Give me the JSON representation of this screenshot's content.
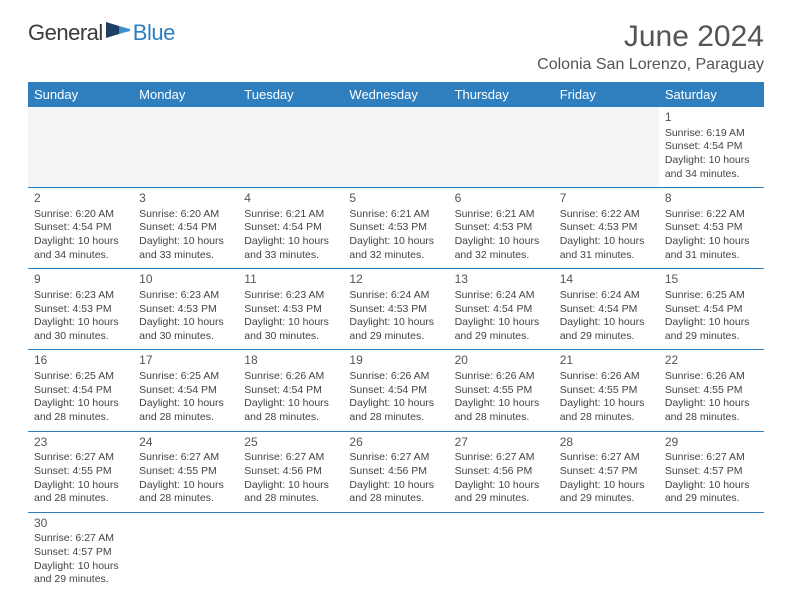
{
  "logo": {
    "general": "General",
    "blue": "Blue"
  },
  "title": {
    "month": "June 2024",
    "location": "Colonia San Lorenzo, Paraguay"
  },
  "colors": {
    "header_bg": "#2f7fbf",
    "header_text": "#ffffff",
    "rule": "#2f7fbf",
    "text": "#444444"
  },
  "weekdays": [
    "Sunday",
    "Monday",
    "Tuesday",
    "Wednesday",
    "Thursday",
    "Friday",
    "Saturday"
  ],
  "weeks": [
    [
      null,
      null,
      null,
      null,
      null,
      null,
      {
        "n": "1",
        "sr": "Sunrise: 6:19 AM",
        "ss": "Sunset: 4:54 PM",
        "d1": "Daylight: 10 hours",
        "d2": "and 34 minutes."
      }
    ],
    [
      {
        "n": "2",
        "sr": "Sunrise: 6:20 AM",
        "ss": "Sunset: 4:54 PM",
        "d1": "Daylight: 10 hours",
        "d2": "and 34 minutes."
      },
      {
        "n": "3",
        "sr": "Sunrise: 6:20 AM",
        "ss": "Sunset: 4:54 PM",
        "d1": "Daylight: 10 hours",
        "d2": "and 33 minutes."
      },
      {
        "n": "4",
        "sr": "Sunrise: 6:21 AM",
        "ss": "Sunset: 4:54 PM",
        "d1": "Daylight: 10 hours",
        "d2": "and 33 minutes."
      },
      {
        "n": "5",
        "sr": "Sunrise: 6:21 AM",
        "ss": "Sunset: 4:53 PM",
        "d1": "Daylight: 10 hours",
        "d2": "and 32 minutes."
      },
      {
        "n": "6",
        "sr": "Sunrise: 6:21 AM",
        "ss": "Sunset: 4:53 PM",
        "d1": "Daylight: 10 hours",
        "d2": "and 32 minutes."
      },
      {
        "n": "7",
        "sr": "Sunrise: 6:22 AM",
        "ss": "Sunset: 4:53 PM",
        "d1": "Daylight: 10 hours",
        "d2": "and 31 minutes."
      },
      {
        "n": "8",
        "sr": "Sunrise: 6:22 AM",
        "ss": "Sunset: 4:53 PM",
        "d1": "Daylight: 10 hours",
        "d2": "and 31 minutes."
      }
    ],
    [
      {
        "n": "9",
        "sr": "Sunrise: 6:23 AM",
        "ss": "Sunset: 4:53 PM",
        "d1": "Daylight: 10 hours",
        "d2": "and 30 minutes."
      },
      {
        "n": "10",
        "sr": "Sunrise: 6:23 AM",
        "ss": "Sunset: 4:53 PM",
        "d1": "Daylight: 10 hours",
        "d2": "and 30 minutes."
      },
      {
        "n": "11",
        "sr": "Sunrise: 6:23 AM",
        "ss": "Sunset: 4:53 PM",
        "d1": "Daylight: 10 hours",
        "d2": "and 30 minutes."
      },
      {
        "n": "12",
        "sr": "Sunrise: 6:24 AM",
        "ss": "Sunset: 4:53 PM",
        "d1": "Daylight: 10 hours",
        "d2": "and 29 minutes."
      },
      {
        "n": "13",
        "sr": "Sunrise: 6:24 AM",
        "ss": "Sunset: 4:54 PM",
        "d1": "Daylight: 10 hours",
        "d2": "and 29 minutes."
      },
      {
        "n": "14",
        "sr": "Sunrise: 6:24 AM",
        "ss": "Sunset: 4:54 PM",
        "d1": "Daylight: 10 hours",
        "d2": "and 29 minutes."
      },
      {
        "n": "15",
        "sr": "Sunrise: 6:25 AM",
        "ss": "Sunset: 4:54 PM",
        "d1": "Daylight: 10 hours",
        "d2": "and 29 minutes."
      }
    ],
    [
      {
        "n": "16",
        "sr": "Sunrise: 6:25 AM",
        "ss": "Sunset: 4:54 PM",
        "d1": "Daylight: 10 hours",
        "d2": "and 28 minutes."
      },
      {
        "n": "17",
        "sr": "Sunrise: 6:25 AM",
        "ss": "Sunset: 4:54 PM",
        "d1": "Daylight: 10 hours",
        "d2": "and 28 minutes."
      },
      {
        "n": "18",
        "sr": "Sunrise: 6:26 AM",
        "ss": "Sunset: 4:54 PM",
        "d1": "Daylight: 10 hours",
        "d2": "and 28 minutes."
      },
      {
        "n": "19",
        "sr": "Sunrise: 6:26 AM",
        "ss": "Sunset: 4:54 PM",
        "d1": "Daylight: 10 hours",
        "d2": "and 28 minutes."
      },
      {
        "n": "20",
        "sr": "Sunrise: 6:26 AM",
        "ss": "Sunset: 4:55 PM",
        "d1": "Daylight: 10 hours",
        "d2": "and 28 minutes."
      },
      {
        "n": "21",
        "sr": "Sunrise: 6:26 AM",
        "ss": "Sunset: 4:55 PM",
        "d1": "Daylight: 10 hours",
        "d2": "and 28 minutes."
      },
      {
        "n": "22",
        "sr": "Sunrise: 6:26 AM",
        "ss": "Sunset: 4:55 PM",
        "d1": "Daylight: 10 hours",
        "d2": "and 28 minutes."
      }
    ],
    [
      {
        "n": "23",
        "sr": "Sunrise: 6:27 AM",
        "ss": "Sunset: 4:55 PM",
        "d1": "Daylight: 10 hours",
        "d2": "and 28 minutes."
      },
      {
        "n": "24",
        "sr": "Sunrise: 6:27 AM",
        "ss": "Sunset: 4:55 PM",
        "d1": "Daylight: 10 hours",
        "d2": "and 28 minutes."
      },
      {
        "n": "25",
        "sr": "Sunrise: 6:27 AM",
        "ss": "Sunset: 4:56 PM",
        "d1": "Daylight: 10 hours",
        "d2": "and 28 minutes."
      },
      {
        "n": "26",
        "sr": "Sunrise: 6:27 AM",
        "ss": "Sunset: 4:56 PM",
        "d1": "Daylight: 10 hours",
        "d2": "and 28 minutes."
      },
      {
        "n": "27",
        "sr": "Sunrise: 6:27 AM",
        "ss": "Sunset: 4:56 PM",
        "d1": "Daylight: 10 hours",
        "d2": "and 29 minutes."
      },
      {
        "n": "28",
        "sr": "Sunrise: 6:27 AM",
        "ss": "Sunset: 4:57 PM",
        "d1": "Daylight: 10 hours",
        "d2": "and 29 minutes."
      },
      {
        "n": "29",
        "sr": "Sunrise: 6:27 AM",
        "ss": "Sunset: 4:57 PM",
        "d1": "Daylight: 10 hours",
        "d2": "and 29 minutes."
      }
    ],
    [
      {
        "n": "30",
        "sr": "Sunrise: 6:27 AM",
        "ss": "Sunset: 4:57 PM",
        "d1": "Daylight: 10 hours",
        "d2": "and 29 minutes."
      },
      null,
      null,
      null,
      null,
      null,
      null
    ]
  ]
}
